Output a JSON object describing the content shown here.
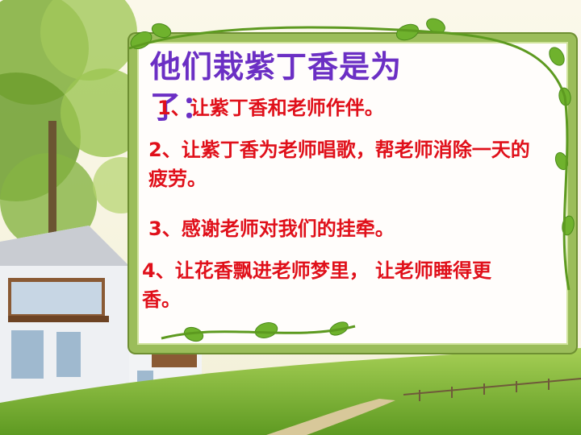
{
  "slide": {
    "title": "他们栽紫丁香是为了：",
    "items": [
      "1、让紫丁香和老师作伴。",
      "2、让紫丁香为老师唱歌，帮老师消除一天的疲劳。",
      "3、感谢老师对我们的挂牵。",
      "4、让花香飘进老师梦里，  让老师睡得更香。"
    ]
  },
  "colors": {
    "title": "#6b2fc4",
    "item_text": "#e0101a",
    "frame": "#9bbd5a",
    "grass": "#7db23a"
  }
}
